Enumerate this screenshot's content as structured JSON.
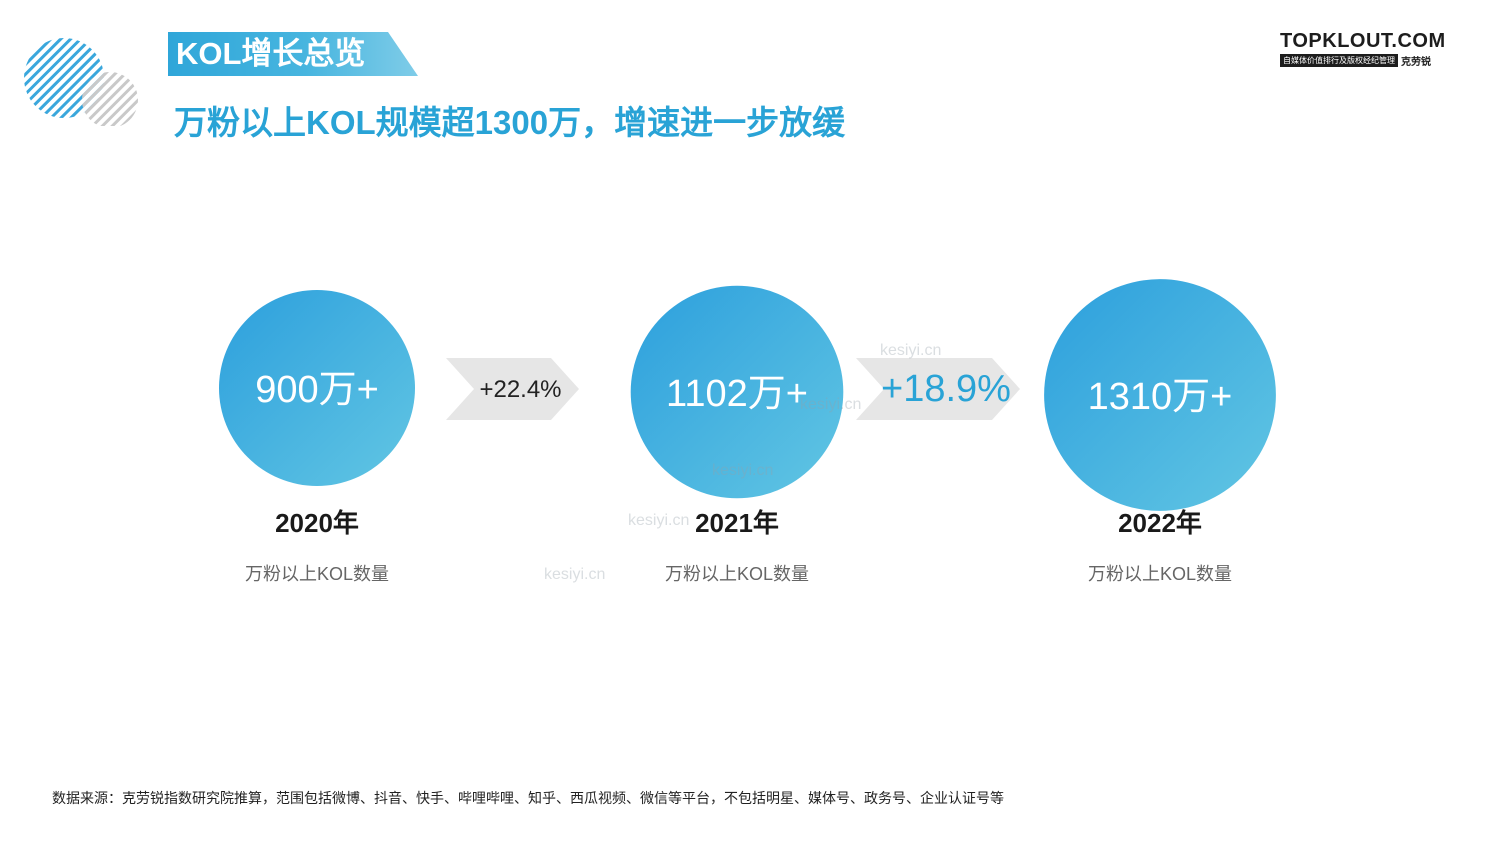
{
  "header": {
    "section_tag": "KOL增长总览",
    "subtitle": "万粉以上KOL规模超1300万，增速进一步放缓"
  },
  "brand": {
    "name": "TOPKLOUT.COM",
    "tagline": "自媒体价值排行及版权经纪管理",
    "name_cn": "克劳锐"
  },
  "colors": {
    "accent": "#29a3d6",
    "circle_gradient_start": "#2fa0dc",
    "circle_gradient_end": "#5ec4e4",
    "arrow_gray": "#e6e6e6",
    "text_dark": "#1a1a1a",
    "text_gray": "#666666"
  },
  "chart_data": {
    "type": "bubble",
    "unit": "万",
    "series": [
      {
        "year": "2020年",
        "value": 900,
        "label": "900万+",
        "caption": "万粉以上KOL数量"
      },
      {
        "year": "2021年",
        "value": 1102,
        "label": "1102万+",
        "caption": "万粉以上KOL数量"
      },
      {
        "year": "2022年",
        "value": 1310,
        "label": "1310万+",
        "caption": "万粉以上KOL数量"
      }
    ],
    "growth": [
      {
        "label": "+22.4%",
        "value": 22.4,
        "highlight": false
      },
      {
        "label": "+18.9%",
        "value": 18.9,
        "highlight": true
      }
    ]
  },
  "footer": {
    "source": "数据来源：克劳锐指数研究院推算，范围包括微博、抖音、快手、哔哩哔哩、知乎、西瓜视频、微信等平台，不包括明星、媒体号、政务号、企业认证号等"
  },
  "watermarks": [
    "kesiyi.cn",
    "kesiyi.cn",
    "kesiyi.cn",
    "kesiyi.cn",
    "kesiyi.cn"
  ]
}
